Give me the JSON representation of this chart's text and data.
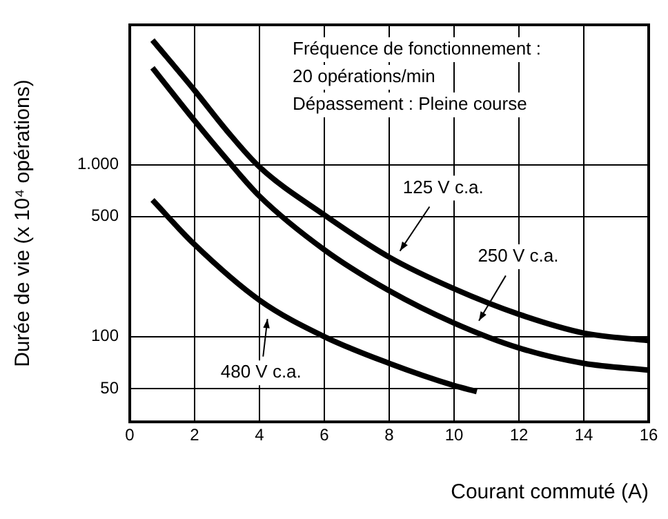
{
  "chart_data": {
    "type": "line",
    "xlabel": "Courant commuté (A)",
    "ylabel": "Durée de vie (x 10⁴ opérations)",
    "xlim": [
      0,
      16
    ],
    "xticks": [
      0,
      2,
      4,
      6,
      8,
      10,
      12,
      14,
      16
    ],
    "ylim": [
      32,
      6500
    ],
    "yticks": [
      50,
      100,
      500,
      {
        "value": 1000,
        "label": "1.000"
      }
    ],
    "log": "y",
    "grid": true,
    "legend": false,
    "marker": "none",
    "line_style": "solid",
    "series": [
      {
        "color": "#000000",
        "x": [
          0.7,
          2,
          3,
          4,
          6,
          8,
          10,
          12,
          14,
          16
        ],
        "values": [
          5300,
          2700,
          1570,
          970,
          510,
          290,
          190,
          135,
          105,
          95
        ]
      },
      {
        "color": "#000000",
        "x": [
          0.7,
          2,
          3,
          4,
          6,
          8,
          10,
          12,
          14,
          16
        ],
        "values": [
          3660,
          1800,
          1070,
          656,
          320,
          185,
          120,
          86,
          70,
          64
        ]
      },
      {
        "color": "#000000",
        "x": [
          0.7,
          2,
          4,
          6,
          8,
          10,
          10.7
        ],
        "values": [
          623,
          343,
          163,
          100,
          70,
          52,
          48
        ]
      }
    ],
    "annotations": [
      "Fréquence de fonctionnement :",
      "20 opérations/min",
      "Dépassement : Pleine course",
      {
        "text": "125 V c.a.",
        "x": 8.26,
        "y": 301
      },
      {
        "text": "250 V c.a.",
        "x": 10.7,
        "y": 118
      },
      {
        "text": "480 V c.a.",
        "x": 4.26,
        "y": 134
      }
    ]
  }
}
